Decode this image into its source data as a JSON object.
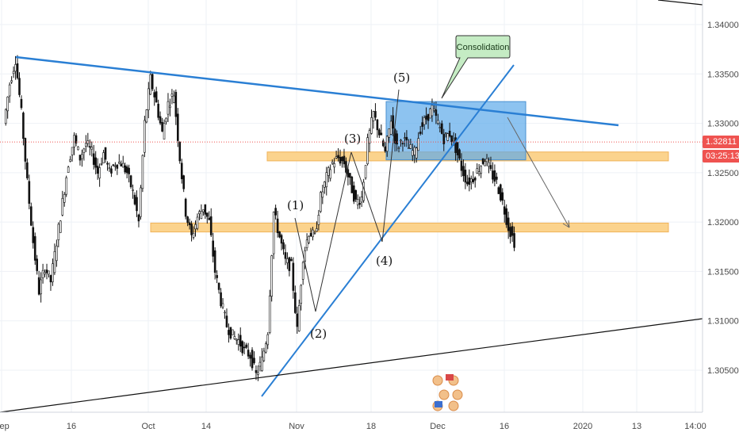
{
  "chart_data": {
    "type": "candlestick",
    "price_axis": {
      "ticks": [
        "1.34000",
        "1.33500",
        "1.33000",
        "1.32500",
        "1.32000",
        "1.31500",
        "1.31000",
        "1.30500"
      ],
      "ylim": [
        1.3005,
        1.3435
      ]
    },
    "time_axis": {
      "ticks": [
        "Sep",
        "16",
        "Oct",
        "14",
        "Nov",
        "18",
        "Dec",
        "16",
        "2020",
        "13",
        "14:00"
      ]
    },
    "current_price": {
      "value": "1.32811",
      "countdown": "03:25:13",
      "color": "#ef5350"
    },
    "callout": {
      "text": "Consolidation"
    },
    "wave_labels": [
      "(1)",
      "(2)",
      "(3)",
      "(4)",
      "(5)"
    ],
    "price_series": {
      "x_range_days": [
        0,
        106
      ],
      "points": [
        [
          0,
          1.33
        ],
        [
          1,
          1.334
        ],
        [
          2,
          1.3365
        ],
        [
          3,
          1.331
        ],
        [
          4,
          1.324
        ],
        [
          5,
          1.318
        ],
        [
          6,
          1.313
        ],
        [
          7,
          1.3155
        ],
        [
          8,
          1.314
        ],
        [
          9,
          1.318
        ],
        [
          10,
          1.322
        ],
        [
          11,
          1.326
        ],
        [
          12,
          1.3285
        ],
        [
          13,
          1.3265
        ],
        [
          14,
          1.328
        ],
        [
          15,
          1.327
        ],
        [
          16,
          1.325
        ],
        [
          17,
          1.327
        ],
        [
          18,
          1.325
        ],
        [
          19,
          1.326
        ],
        [
          20,
          1.326
        ],
        [
          21,
          1.325
        ],
        [
          22,
          1.323
        ],
        [
          23,
          1.32
        ],
        [
          24,
          1.33
        ],
        [
          25,
          1.3345
        ],
        [
          26,
          1.332
        ],
        [
          27,
          1.329
        ],
        [
          28,
          1.332
        ],
        [
          29,
          1.333
        ],
        [
          30,
          1.3265
        ],
        [
          31,
          1.321
        ],
        [
          32,
          1.3185
        ],
        [
          33,
          1.3205
        ],
        [
          34,
          1.3215
        ],
        [
          35,
          1.32
        ],
        [
          36,
          1.315
        ],
        [
          37,
          1.312
        ],
        [
          38,
          1.3095
        ],
        [
          39,
          1.3085
        ],
        [
          40,
          1.308
        ],
        [
          41,
          1.307
        ],
        [
          42,
          1.3065
        ],
        [
          43,
          1.3045
        ],
        [
          44,
          1.306
        ],
        [
          45,
          1.309
        ],
        [
          46,
          1.321
        ],
        [
          47,
          1.3185
        ],
        [
          48,
          1.316
        ],
        [
          49,
          1.3155
        ],
        [
          50,
          1.309
        ],
        [
          51,
          1.3165
        ],
        [
          52,
          1.319
        ],
        [
          53,
          1.3185
        ],
        [
          54,
          1.3225
        ],
        [
          55,
          1.3245
        ],
        [
          56,
          1.326
        ],
        [
          57,
          1.3265
        ],
        [
          58,
          1.326
        ],
        [
          59,
          1.324
        ],
        [
          60,
          1.322
        ],
        [
          61,
          1.3225
        ],
        [
          62,
          1.328
        ],
        [
          63,
          1.331
        ],
        [
          64,
          1.329
        ],
        [
          65,
          1.327
        ],
        [
          66,
          1.3305
        ],
        [
          67,
          1.3275
        ],
        [
          68,
          1.3285
        ],
        [
          69,
          1.3275
        ],
        [
          70,
          1.327
        ],
        [
          71,
          1.3295
        ],
        [
          72,
          1.3305
        ],
        [
          73,
          1.3315
        ],
        [
          74,
          1.33
        ],
        [
          75,
          1.3285
        ],
        [
          76,
          1.329
        ],
        [
          77,
          1.3275
        ],
        [
          78,
          1.3255
        ],
        [
          79,
          1.324
        ],
        [
          80,
          1.3245
        ],
        [
          81,
          1.3255
        ],
        [
          82,
          1.3265
        ],
        [
          83,
          1.325
        ],
        [
          84,
          1.324
        ],
        [
          85,
          1.322
        ],
        [
          86,
          1.3195
        ],
        [
          87,
          1.318
        ]
      ]
    },
    "drawings": {
      "upper_trendline": {
        "from": [
          1,
          1.3367
        ],
        "to": [
          106,
          1.3298
        ],
        "color": "#2a7fd4"
      },
      "rising_trendline": {
        "from": [
          43,
          1.3025
        ],
        "to": [
          87,
          1.3365
        ],
        "color": "#2a7fd4"
      },
      "lower_support_line": {
        "from": [
          -2,
          1.3
        ],
        "to": [
          112,
          1.3105
        ],
        "color": "#111111"
      },
      "top_right_line": {
        "from": [
          104,
          1.3448
        ],
        "to": [
          112,
          1.3442
        ],
        "color": "#111111"
      },
      "resistance_zone": {
        "x": [
          42,
          106
        ],
        "y": [
          1.3262,
          1.3271
        ],
        "color": "#fbd38d"
      },
      "support_zone": {
        "x": [
          23,
          106
        ],
        "y": [
          1.319,
          1.3199
        ],
        "color": "#fbd38d"
      },
      "consolidation_box": {
        "x": [
          60,
          85
        ],
        "y": [
          1.3263,
          1.3322
        ],
        "color": "#5da9e9"
      },
      "projection_arrow": {
        "from": [
          80,
          1.3292
        ],
        "to": [
          89,
          1.3197
        ],
        "color": "#666666"
      }
    }
  },
  "colors": {
    "grid": "#eef1f6",
    "candle": "#111111",
    "accent": "#2a7fd4"
  },
  "icons": [
    "event-flags-icon"
  ]
}
